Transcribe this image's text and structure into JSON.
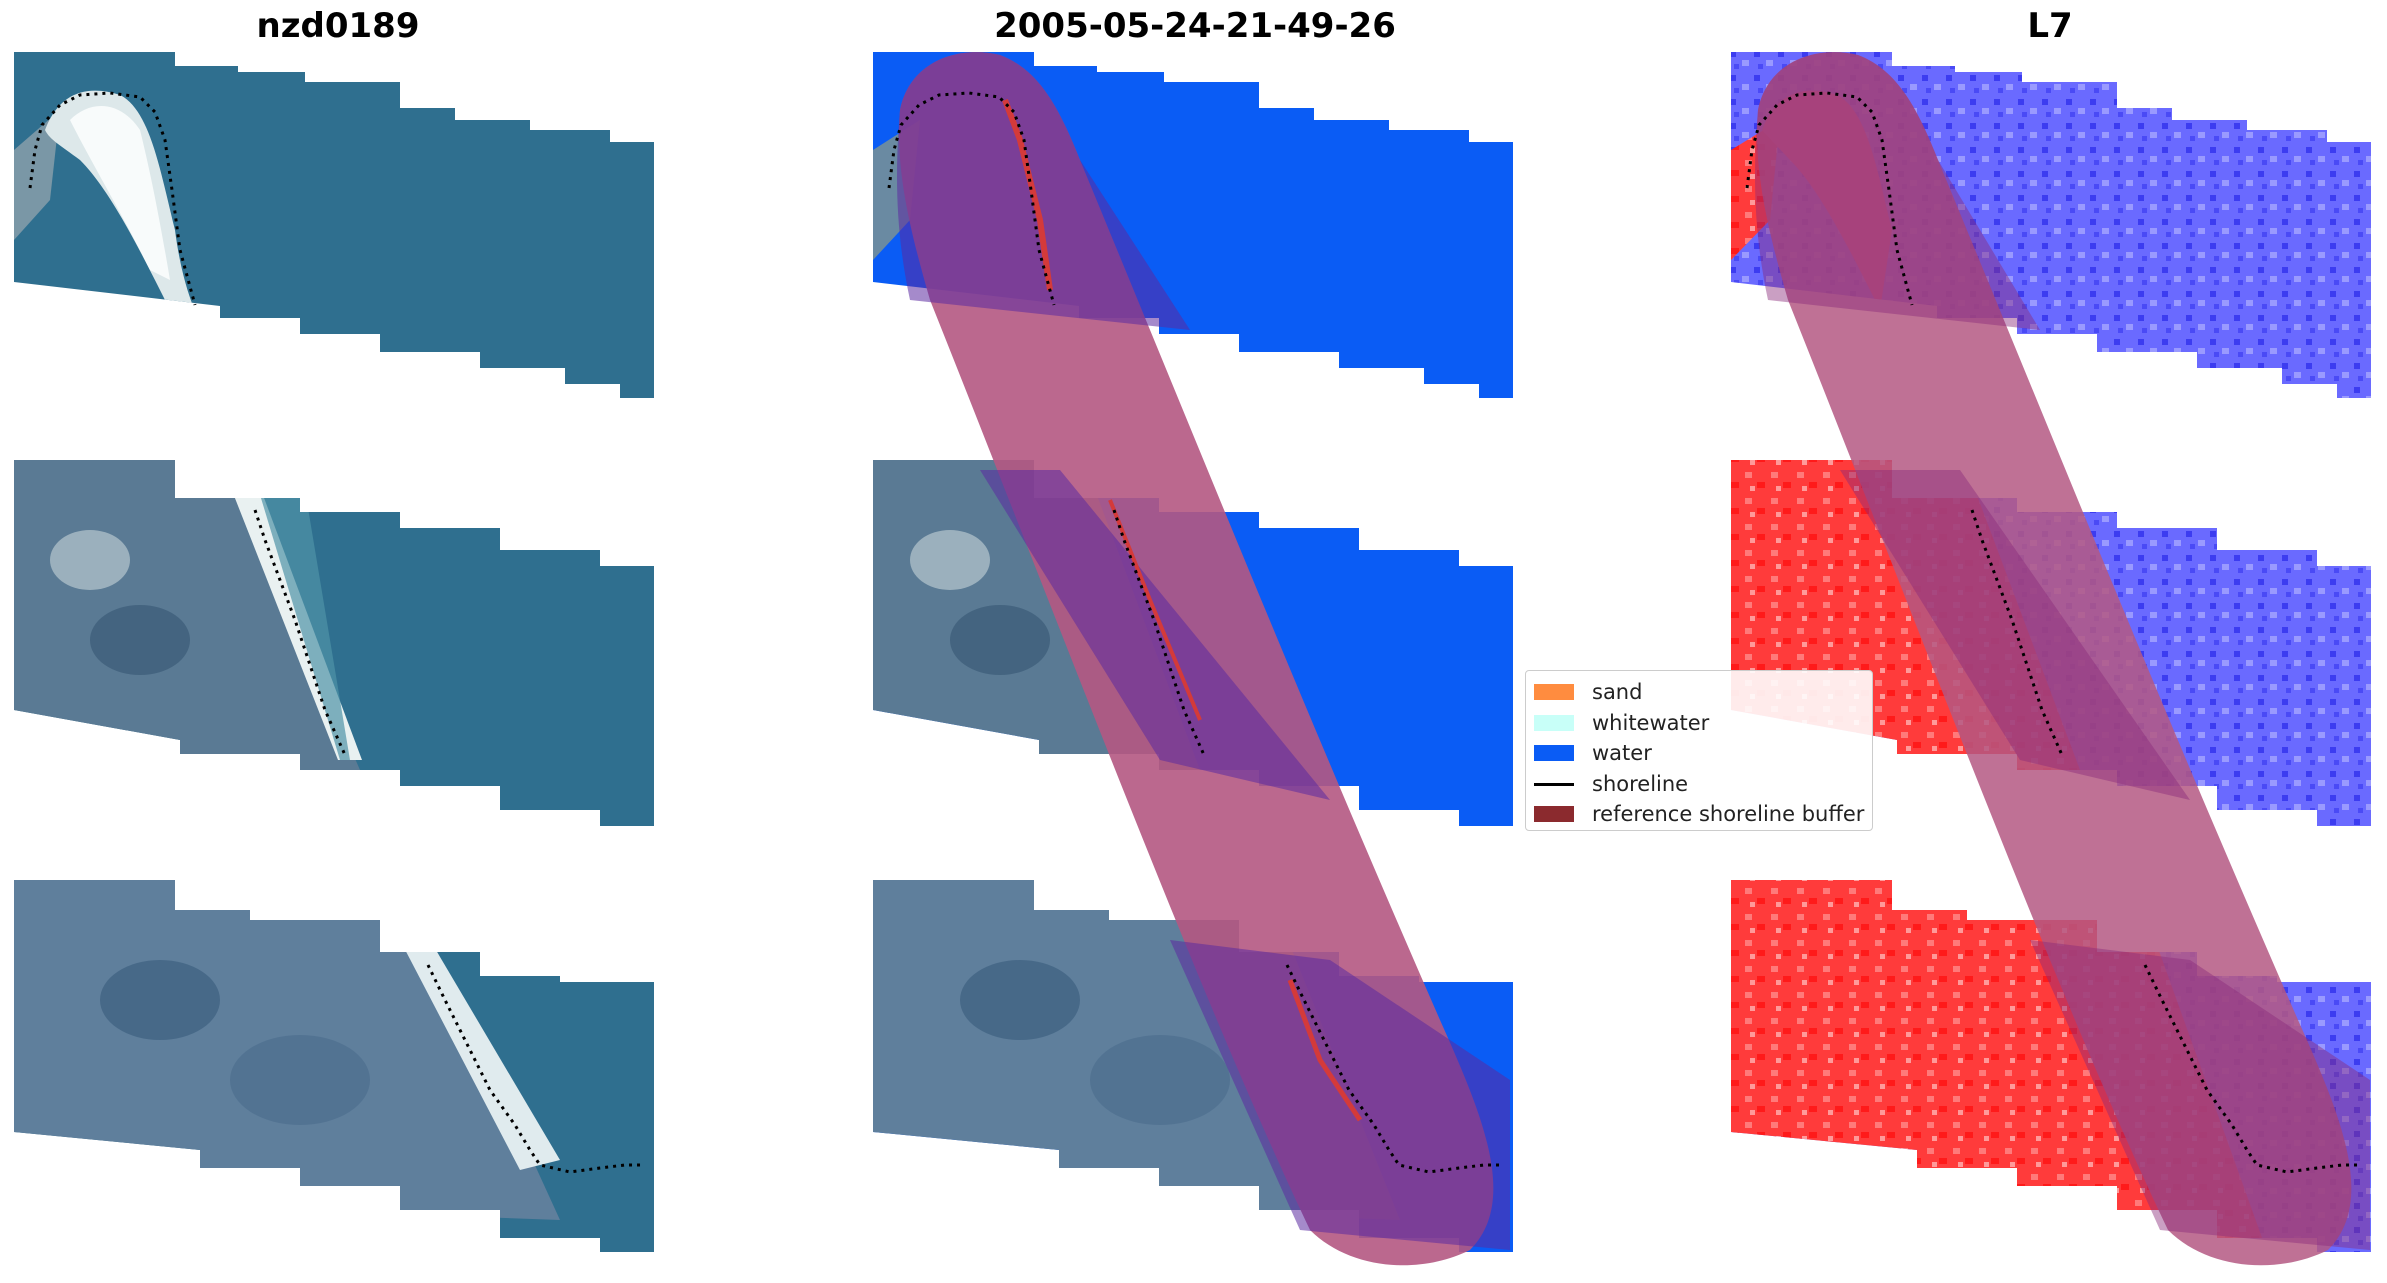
{
  "panels": [
    {
      "title": "nzd0189"
    },
    {
      "title": "2005-05-24-21-49-26"
    },
    {
      "title": "L7"
    }
  ],
  "legend": {
    "items": [
      {
        "label": "sand",
        "color": "#ff8c3f"
      },
      {
        "label": "whitewater",
        "color": "#c8fff8"
      },
      {
        "label": "water",
        "color": "#0a5cf5"
      },
      {
        "label": "shoreline",
        "color": "#000000"
      },
      {
        "label": "reference shoreline buffer",
        "color": "#8b2a2e"
      }
    ]
  },
  "colors": {
    "rgb_ocean": "#2f6f8f",
    "rgb_land": "#4a6f8c",
    "rgb_sand": "#e8eef0",
    "water_class": "#0a5cf5",
    "land_red": "#ff2a2a",
    "water_blue": "#5b5bff",
    "buffer_overlay": "#b45882"
  }
}
